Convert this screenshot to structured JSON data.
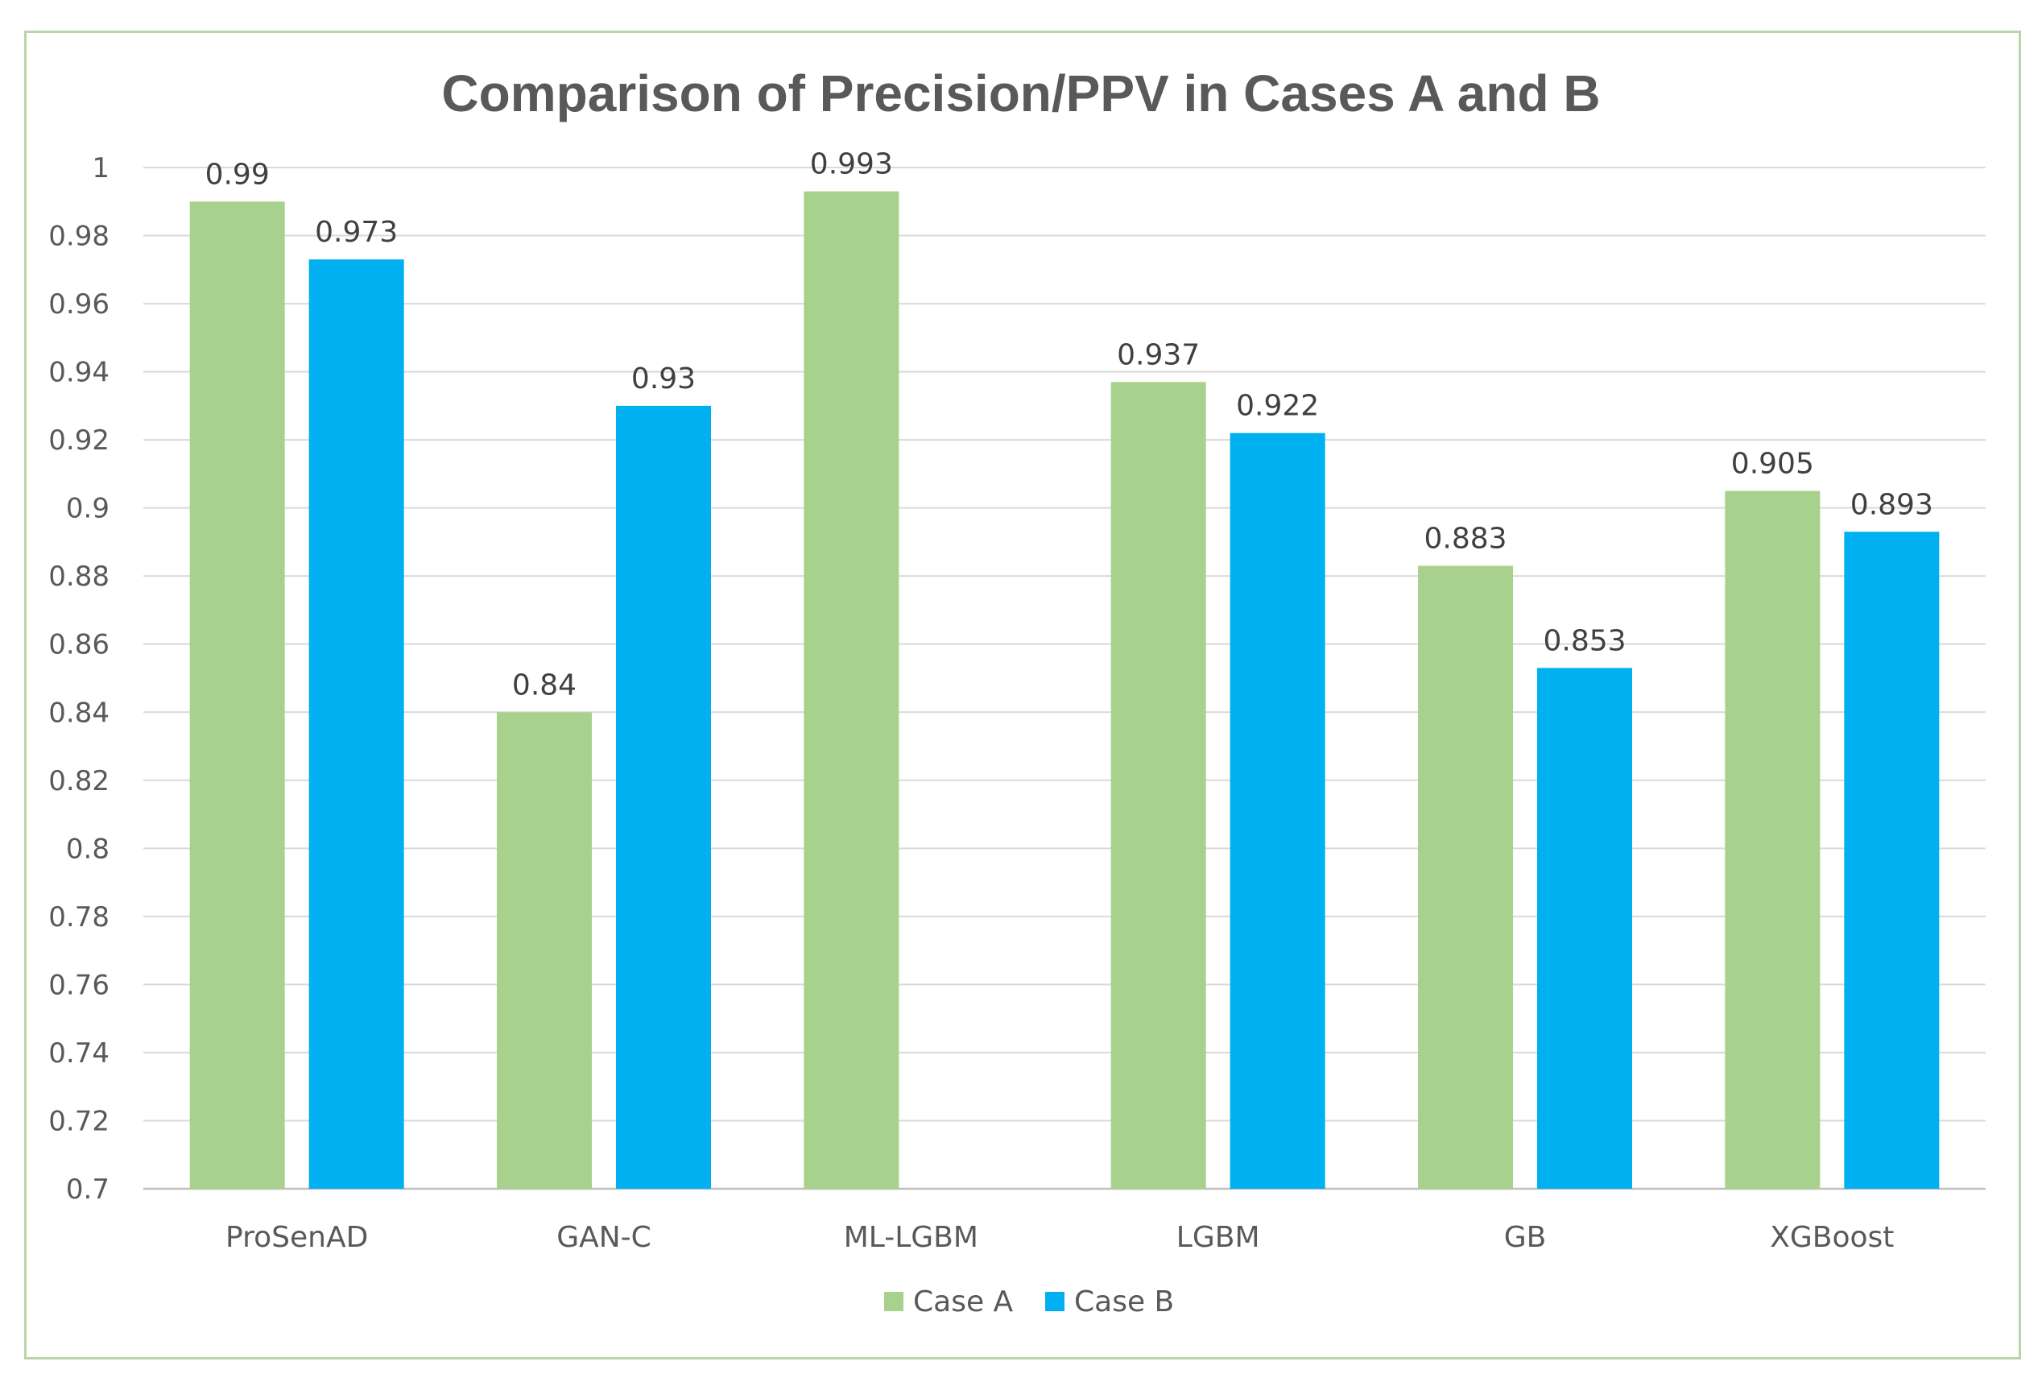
{
  "chart_data": {
    "type": "bar",
    "title": "Comparison of Precision/PPV in Cases A and B",
    "xlabel": "",
    "ylabel": "",
    "ylim": [
      0.7,
      1.0
    ],
    "ytick_step": 0.02,
    "yticks": [
      "0.7",
      "0.72",
      "0.74",
      "0.76",
      "0.78",
      "0.8",
      "0.82",
      "0.84",
      "0.86",
      "0.88",
      "0.9",
      "0.92",
      "0.94",
      "0.96",
      "0.98",
      "1"
    ],
    "grid": true,
    "legend_position": "bottom",
    "categories": [
      "ProSenAD",
      "GAN-C",
      "ML-LGBM",
      "LGBM",
      "GB",
      "XGBoost"
    ],
    "series": [
      {
        "name": "Case A",
        "color": "#a9d18e",
        "values": [
          0.99,
          0.84,
          0.993,
          0.937,
          0.883,
          0.905
        ],
        "labels": [
          "0.99",
          "0.84",
          "0.993",
          "0.937",
          "0.883",
          "0.905"
        ]
      },
      {
        "name": "Case B",
        "color": "#00b0f0",
        "values": [
          0.973,
          0.93,
          null,
          0.922,
          0.853,
          0.893
        ],
        "labels": [
          "0.973",
          "0.93",
          null,
          "0.922",
          "0.853",
          "0.893"
        ]
      }
    ]
  }
}
